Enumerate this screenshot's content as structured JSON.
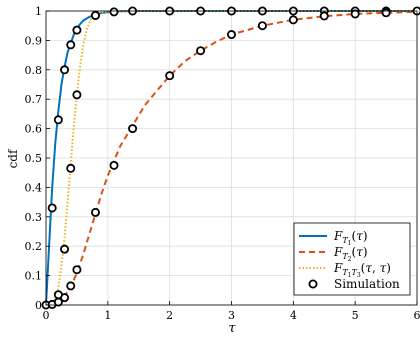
{
  "chart_data": {
    "type": "line",
    "title": "",
    "xlabel": "τ",
    "ylabel": "cdf",
    "xlim": [
      0,
      6
    ],
    "ylim": [
      0,
      1
    ],
    "xticks": [
      0,
      1,
      2,
      3,
      4,
      5,
      6
    ],
    "yticks": [
      0,
      0.1,
      0.2,
      0.3,
      0.4,
      0.5,
      0.6,
      0.7,
      0.8,
      0.9,
      1
    ],
    "grid": true,
    "legend_position": "bottom-right",
    "series": [
      {
        "name": "F_{T_1}(τ)",
        "color": "#0072BD",
        "style": "solid",
        "x": [
          0,
          0.05,
          0.1,
          0.15,
          0.2,
          0.25,
          0.3,
          0.35,
          0.4,
          0.45,
          0.5,
          0.55,
          0.6,
          0.7,
          0.8,
          0.9,
          1.0,
          1.2,
          1.5,
          2,
          3,
          4,
          5,
          6
        ],
        "y": [
          0,
          0.2,
          0.4,
          0.55,
          0.66,
          0.75,
          0.81,
          0.86,
          0.89,
          0.92,
          0.94,
          0.955,
          0.967,
          0.98,
          0.988,
          0.993,
          0.996,
          0.999,
          1,
          1,
          1,
          1,
          1,
          1
        ]
      },
      {
        "name": "F_{T_2}(τ)",
        "color": "#D95319",
        "style": "dashed",
        "x": [
          0,
          0.1,
          0.2,
          0.3,
          0.4,
          0.5,
          0.6,
          0.7,
          0.8,
          0.9,
          1.0,
          1.2,
          1.4,
          1.6,
          1.8,
          2.0,
          2.25,
          2.5,
          2.75,
          3.0,
          3.5,
          4.0,
          4.5,
          5.0,
          5.5,
          6.0
        ],
        "y": [
          0,
          0.002,
          0.01,
          0.03,
          0.06,
          0.11,
          0.17,
          0.24,
          0.31,
          0.38,
          0.44,
          0.54,
          0.61,
          0.68,
          0.73,
          0.78,
          0.83,
          0.865,
          0.895,
          0.92,
          0.95,
          0.97,
          0.982,
          0.99,
          0.994,
          0.997
        ]
      },
      {
        "name": "F_{T_1T_3}(τ, τ)",
        "color": "#EDB120",
        "style": "dotted",
        "x": [
          0,
          0.1,
          0.15,
          0.2,
          0.25,
          0.3,
          0.35,
          0.4,
          0.45,
          0.5,
          0.55,
          0.6,
          0.65,
          0.7,
          0.75,
          0.8,
          1.0,
          1.5,
          2,
          3,
          4,
          5,
          6
        ],
        "y": [
          0,
          0.005,
          0.02,
          0.06,
          0.13,
          0.23,
          0.35,
          0.48,
          0.61,
          0.72,
          0.81,
          0.88,
          0.93,
          0.96,
          0.98,
          0.99,
          0.998,
          1,
          1,
          1,
          1,
          1,
          1
        ]
      }
    ],
    "simulation": {
      "name": "Simulation",
      "points": [
        {
          "x": 0,
          "y": 0
        },
        {
          "x": 0.1,
          "y": 0.33
        },
        {
          "x": 0.2,
          "y": 0.63
        },
        {
          "x": 0.3,
          "y": 0.8
        },
        {
          "x": 0.4,
          "y": 0.885
        },
        {
          "x": 0.5,
          "y": 0.935
        },
        {
          "x": 0.8,
          "y": 0.985
        },
        {
          "x": 1.1,
          "y": 0.997
        },
        {
          "x": 1.4,
          "y": 1
        },
        {
          "x": 2,
          "y": 1
        },
        {
          "x": 2.5,
          "y": 1
        },
        {
          "x": 3,
          "y": 1
        },
        {
          "x": 3.5,
          "y": 1
        },
        {
          "x": 4,
          "y": 1
        },
        {
          "x": 4.5,
          "y": 1
        },
        {
          "x": 5,
          "y": 1
        },
        {
          "x": 5.5,
          "y": 1
        },
        {
          "x": 6,
          "y": 1
        },
        {
          "x": 0.1,
          "y": 0.002
        },
        {
          "x": 0.2,
          "y": 0.01
        },
        {
          "x": 0.3,
          "y": 0.025
        },
        {
          "x": 0.4,
          "y": 0.065
        },
        {
          "x": 0.5,
          "y": 0.12
        },
        {
          "x": 0.8,
          "y": 0.315
        },
        {
          "x": 1.1,
          "y": 0.475
        },
        {
          "x": 1.4,
          "y": 0.6
        },
        {
          "x": 2,
          "y": 0.78
        },
        {
          "x": 2.5,
          "y": 0.865
        },
        {
          "x": 3,
          "y": 0.92
        },
        {
          "x": 3.5,
          "y": 0.95
        },
        {
          "x": 4,
          "y": 0.97
        },
        {
          "x": 4.5,
          "y": 0.983
        },
        {
          "x": 5,
          "y": 0.99
        },
        {
          "x": 5.5,
          "y": 0.994
        },
        {
          "x": 0.2,
          "y": 0.035
        },
        {
          "x": 0.3,
          "y": 0.19
        },
        {
          "x": 0.4,
          "y": 0.465
        },
        {
          "x": 0.5,
          "y": 0.715
        },
        {
          "x": 0.8,
          "y": 0.985
        }
      ]
    }
  }
}
